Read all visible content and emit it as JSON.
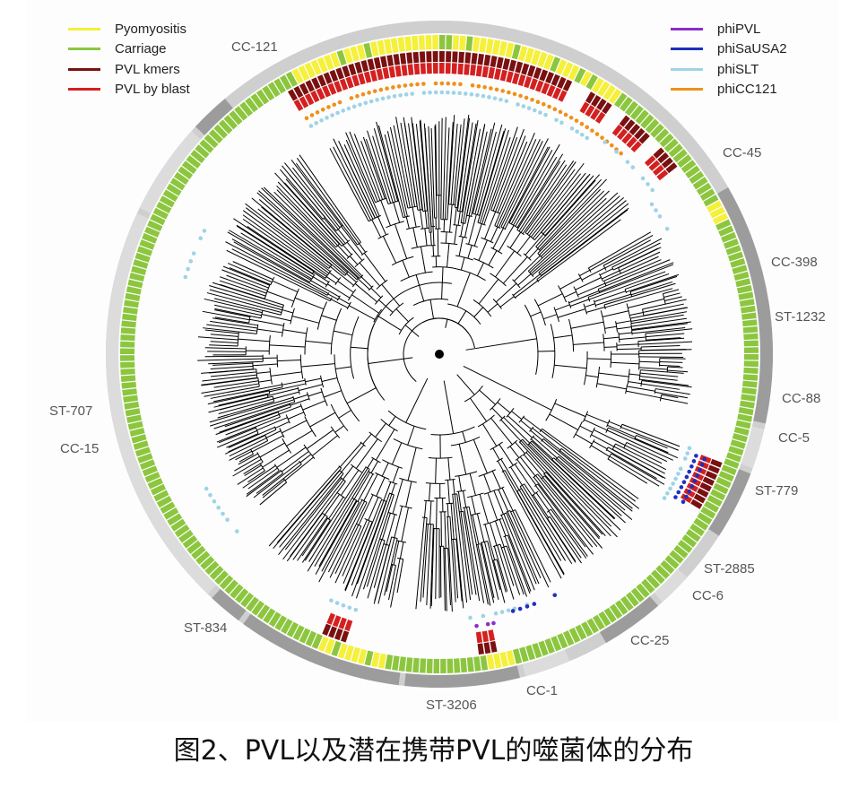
{
  "legend_left": [
    {
      "label": "Pyomyositis",
      "color": "#f5f03a"
    },
    {
      "label": "Carriage",
      "color": "#8cc63f"
    },
    {
      "label": "PVL kmers",
      "color": "#7a1010"
    },
    {
      "label": "PVL by blast",
      "color": "#d42020"
    }
  ],
  "legend_right": [
    {
      "label": "phiPVL",
      "color": "#8b2fc9"
    },
    {
      "label": "phiSaUSA2",
      "color": "#1f2fbf"
    },
    {
      "label": "phiSLT",
      "color": "#9fd3e6"
    },
    {
      "label": "phiCC121",
      "color": "#f0901a"
    }
  ],
  "clades": [
    {
      "label": "CC-121",
      "start_deg": -118,
      "end_deg": -30,
      "shade": "#cfcfcf"
    },
    {
      "label": "CC-45",
      "start_deg": -30,
      "end_deg": 12,
      "shade": "#9c9c9c"
    },
    {
      "label": "CC-398",
      "start_deg": 13,
      "end_deg": 20,
      "shade": "#dcdcdc"
    },
    {
      "label": "ST-1232",
      "start_deg": 21,
      "end_deg": 33,
      "shade": "#9c9c9c"
    },
    {
      "label": "CC-88",
      "start_deg": 34,
      "end_deg": 41,
      "shade": "#cfcfcf"
    },
    {
      "label": "CC-5",
      "start_deg": 42,
      "end_deg": 48,
      "shade": "#dcdcdc"
    },
    {
      "label": "ST-779",
      "start_deg": 49,
      "end_deg": 60,
      "shade": "#9c9c9c"
    },
    {
      "label": "ST-2885",
      "start_deg": 61,
      "end_deg": 66,
      "shade": "#cfcfcf"
    },
    {
      "label": "CC-6",
      "start_deg": 67,
      "end_deg": 75,
      "shade": "#dcdcdc"
    },
    {
      "label": "CC-25",
      "start_deg": 76,
      "end_deg": 96,
      "shade": "#9c9c9c"
    },
    {
      "label": "CC-1",
      "start_deg": 97,
      "end_deg": 126,
      "shade": "#9c9c9c"
    },
    {
      "label": "ST-3206",
      "start_deg": 127,
      "end_deg": 133,
      "shade": "#9c9c9c"
    },
    {
      "label": "ST-834",
      "start_deg": 134,
      "end_deg": 205,
      "shade": "#dcdcdc"
    },
    {
      "label": "CC-15",
      "start_deg": 206,
      "end_deg": 222,
      "shade": "#dcdcdc"
    },
    {
      "label": "ST-707",
      "start_deg": 223,
      "end_deg": 230,
      "shade": "#9c9c9c"
    },
    {
      "label": "",
      "start_deg": 231,
      "end_deg": 241,
      "shade": "#cfcfcf"
    }
  ],
  "caption": "图2、PVL以及潜在携带PVL的噬菌体的分布"
}
